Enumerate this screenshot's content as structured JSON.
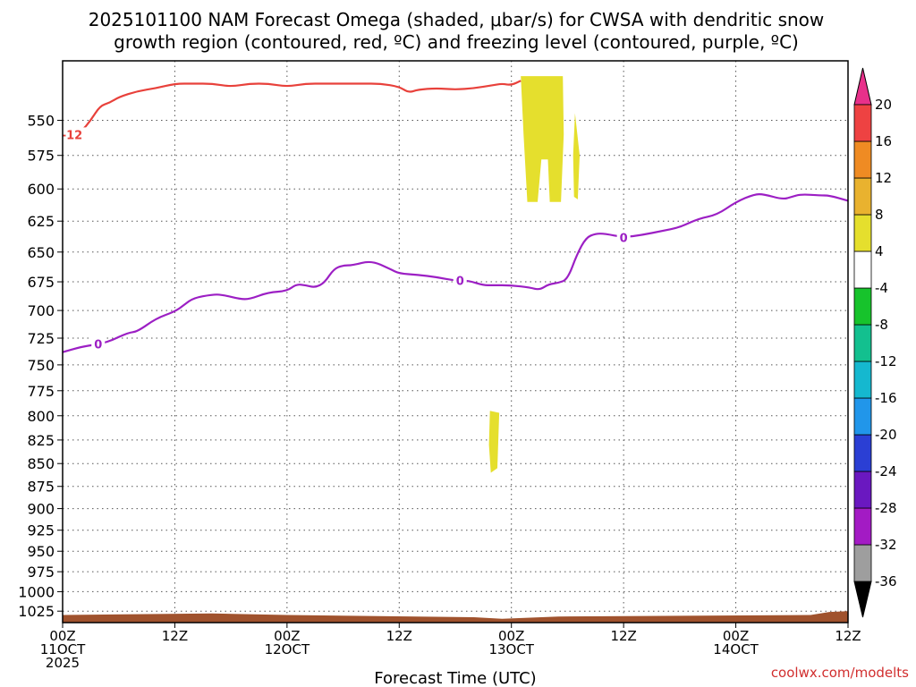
{
  "title_lines": [
    "2025101100 NAM Forecast Omega (shaded, μbar/s) for CWSA with dendritic snow",
    "growth region (contoured, red, ºC) and freezing level (contoured, purple, ºC)"
  ],
  "credit": "coolwx.com/modelts",
  "chart_data": {
    "type": "time-height",
    "title": "2025101100 NAM Forecast Omega (shaded, μbar/s) for CWSA with dendritic snow growth region (contoured, red, ºC) and freezing level (contoured, purple, ºC)",
    "xlabel": "Forecast Time (UTC)",
    "ylabel": "",
    "x_unit": "forecast hour",
    "xlim": [
      0,
      84
    ],
    "ylim": [
      1040,
      510
    ],
    "y_scale": "log-pressure",
    "grid": true,
    "x_ticks": [
      {
        "x": 0,
        "label1": "00Z",
        "label2": "11OCT",
        "label3": "2025"
      },
      {
        "x": 12,
        "label1": "12Z",
        "label2": "",
        "label3": ""
      },
      {
        "x": 24,
        "label1": "00Z",
        "label2": "12OCT",
        "label3": ""
      },
      {
        "x": 36,
        "label1": "12Z",
        "label2": "",
        "label3": ""
      },
      {
        "x": 48,
        "label1": "00Z",
        "label2": "13OCT",
        "label3": ""
      },
      {
        "x": 60,
        "label1": "12Z",
        "label2": "",
        "label3": ""
      },
      {
        "x": 72,
        "label1": "00Z",
        "label2": "14OCT",
        "label3": ""
      },
      {
        "x": 84,
        "label1": "12Z",
        "label2": "",
        "label3": ""
      }
    ],
    "y_ticks": [
      "550",
      "575",
      "600",
      "625",
      "650",
      "675",
      "700",
      "725",
      "750",
      "775",
      "800",
      "825",
      "850",
      "875",
      "900",
      "925",
      "950",
      "975",
      "1000",
      "1025"
    ],
    "series": [
      {
        "name": "freezing level",
        "contour_label": "0",
        "color": "#9c1fc4",
        "points": [
          [
            0,
            738
          ],
          [
            2,
            733
          ],
          [
            3.5,
            731
          ],
          [
            5,
            728
          ],
          [
            7,
            720
          ],
          [
            8,
            719
          ],
          [
            10,
            707
          ],
          [
            12,
            701
          ],
          [
            13,
            695
          ],
          [
            14,
            689
          ],
          [
            16,
            686
          ],
          [
            17,
            686
          ],
          [
            19,
            690
          ],
          [
            20,
            690
          ],
          [
            22,
            684
          ],
          [
            24,
            683
          ],
          [
            25,
            677
          ],
          [
            26,
            678
          ],
          [
            27,
            680
          ],
          [
            28,
            676
          ],
          [
            29,
            664
          ],
          [
            30,
            661
          ],
          [
            31,
            661
          ],
          [
            33,
            657
          ],
          [
            35,
            664
          ],
          [
            36,
            668
          ],
          [
            38,
            669
          ],
          [
            40,
            671
          ],
          [
            42,
            674
          ],
          [
            43.4,
            674
          ],
          [
            45,
            678
          ],
          [
            46,
            678
          ],
          [
            48,
            678
          ],
          [
            50,
            680
          ],
          [
            51,
            682
          ],
          [
            52,
            677
          ],
          [
            53,
            676
          ],
          [
            54,
            673
          ],
          [
            55,
            652
          ],
          [
            56,
            638
          ],
          [
            57,
            635
          ],
          [
            58,
            635
          ],
          [
            60,
            638
          ],
          [
            62,
            636
          ],
          [
            64,
            633
          ],
          [
            66,
            630
          ],
          [
            68,
            623
          ],
          [
            70,
            620
          ],
          [
            72,
            610
          ],
          [
            74,
            604
          ],
          [
            75,
            604
          ],
          [
            77,
            608
          ],
          [
            78,
            606
          ],
          [
            79,
            604
          ],
          [
            81,
            605
          ],
          [
            82,
            605
          ],
          [
            84,
            609
          ]
        ],
        "labels_at": [
          3.8,
          42.5,
          60
        ]
      },
      {
        "name": "-12 C isotherm",
        "contour_label": "-12",
        "color": "#e8413b",
        "points": [
          [
            0,
            562
          ],
          [
            2,
            558
          ],
          [
            3,
            550
          ],
          [
            4,
            540
          ],
          [
            5,
            538
          ],
          [
            6,
            534
          ],
          [
            8,
            530
          ],
          [
            10,
            528
          ],
          [
            12,
            525
          ],
          [
            14,
            525
          ],
          [
            16,
            525
          ],
          [
            18,
            527
          ],
          [
            20,
            525
          ],
          [
            22,
            525
          ],
          [
            24,
            527
          ],
          [
            26,
            525
          ],
          [
            28,
            525
          ],
          [
            30,
            525
          ],
          [
            32,
            525
          ],
          [
            34,
            525
          ],
          [
            36,
            527
          ],
          [
            37,
            531
          ],
          [
            38,
            529
          ],
          [
            40,
            528
          ],
          [
            42,
            529
          ],
          [
            44,
            528
          ],
          [
            46,
            526
          ],
          [
            47,
            525
          ],
          [
            48,
            526
          ],
          [
            49,
            523
          ]
        ],
        "labels_at": [
          1
        ]
      }
    ],
    "shaded_regions": [
      {
        "value_range": "4 to 8",
        "color": "#e5df2d",
        "polygon": [
          [
            49,
            520
          ],
          [
            53.5,
            520
          ],
          [
            53.6,
            560
          ],
          [
            53.3,
            610
          ],
          [
            52.1,
            610
          ],
          [
            51.9,
            578
          ],
          [
            51.2,
            578
          ],
          [
            50.8,
            610
          ],
          [
            49.7,
            610
          ],
          [
            49.3,
            560
          ]
        ]
      },
      {
        "value_range": "4 to 8",
        "color": "#e5df2d",
        "polygon": [
          [
            54.8,
            545
          ],
          [
            55.3,
            575
          ],
          [
            55.1,
            608
          ],
          [
            54.7,
            606
          ],
          [
            54.6,
            575
          ]
        ]
      },
      {
        "value_range": "4 to 8",
        "color": "#e5df2d",
        "polygon": [
          [
            45.7,
            795
          ],
          [
            46.7,
            797
          ],
          [
            46.5,
            855
          ],
          [
            45.8,
            860
          ],
          [
            45.6,
            830
          ]
        ]
      }
    ],
    "surface": {
      "color": "#a0522d",
      "points": [
        [
          0,
          1030
        ],
        [
          16,
          1028
        ],
        [
          24,
          1030
        ],
        [
          44,
          1033
        ],
        [
          47,
          1035
        ],
        [
          53,
          1032
        ],
        [
          80,
          1030
        ],
        [
          82,
          1026
        ],
        [
          84,
          1025
        ]
      ]
    },
    "colorbar": {
      "min_arrow_color": "#000000",
      "max_arrow_color": "#e8308a",
      "bins": [
        {
          "color": "#9e9e9e",
          "label": "-32"
        },
        {
          "color": "#a31bc4",
          "label": "-28"
        },
        {
          "color": "#6a18c0",
          "label": "-24"
        },
        {
          "color": "#2b3fd4",
          "label": "-20"
        },
        {
          "color": "#2196ea",
          "label": "-16"
        },
        {
          "color": "#15b8cf",
          "label": "-12"
        },
        {
          "color": "#13c08f",
          "label": "-8"
        },
        {
          "color": "#17c32c",
          "label": "-4"
        },
        {
          "color": "#ffffff",
          "label": "4"
        },
        {
          "color": "#e5df2d",
          "label": "8"
        },
        {
          "color": "#e9b22f",
          "label": "12"
        },
        {
          "color": "#ef8b23",
          "label": "16"
        },
        {
          "color": "#ee4242",
          "label": "20"
        }
      ],
      "min_label": "-36"
    }
  }
}
